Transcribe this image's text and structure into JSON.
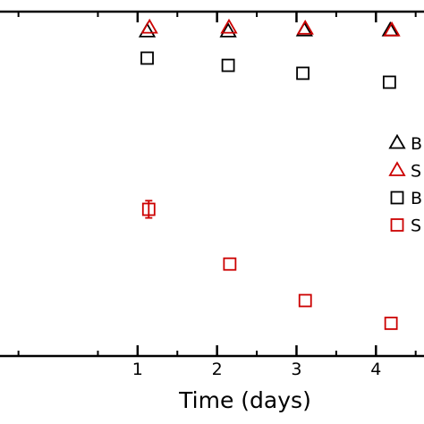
{
  "chart_data": {
    "type": "scatter",
    "title": "",
    "xlabel": "Time (days)",
    "ylabel": "",
    "xlim": [
      -0.8,
      4.65
    ],
    "ylim": [
      0,
      1
    ],
    "x_ticks": [
      1,
      2,
      3,
      4
    ],
    "x_tick_labels": [
      "1",
      "2",
      "3",
      "4"
    ],
    "grid": false,
    "legend_position": "right",
    "series": [
      {
        "name": "B",
        "marker": "triangle",
        "color": "#000000",
        "points": [
          {
            "x": 1.12,
            "y": 0.942
          },
          {
            "x": 2.14,
            "y": 0.942
          },
          {
            "x": 3.1,
            "y": 0.945
          },
          {
            "x": 4.18,
            "y": 0.945
          }
        ]
      },
      {
        "name": "S",
        "marker": "triangle",
        "color": "#cc0000",
        "points": [
          {
            "x": 1.15,
            "y": 0.953
          },
          {
            "x": 2.15,
            "y": 0.953
          },
          {
            "x": 3.11,
            "y": 0.95
          },
          {
            "x": 4.2,
            "y": 0.945
          }
        ]
      },
      {
        "name": "B",
        "marker": "square",
        "color": "#000000",
        "points": [
          {
            "x": 1.12,
            "y": 0.865
          },
          {
            "x": 2.14,
            "y": 0.844
          },
          {
            "x": 3.08,
            "y": 0.821
          },
          {
            "x": 4.17,
            "y": 0.795
          }
        ]
      },
      {
        "name": "S",
        "marker": "square",
        "color": "#cc0000",
        "points": [
          {
            "x": 1.14,
            "y": 0.426,
            "err": 0.025
          },
          {
            "x": 2.16,
            "y": 0.267
          },
          {
            "x": 3.11,
            "y": 0.161
          },
          {
            "x": 4.19,
            "y": 0.095
          }
        ]
      }
    ]
  }
}
